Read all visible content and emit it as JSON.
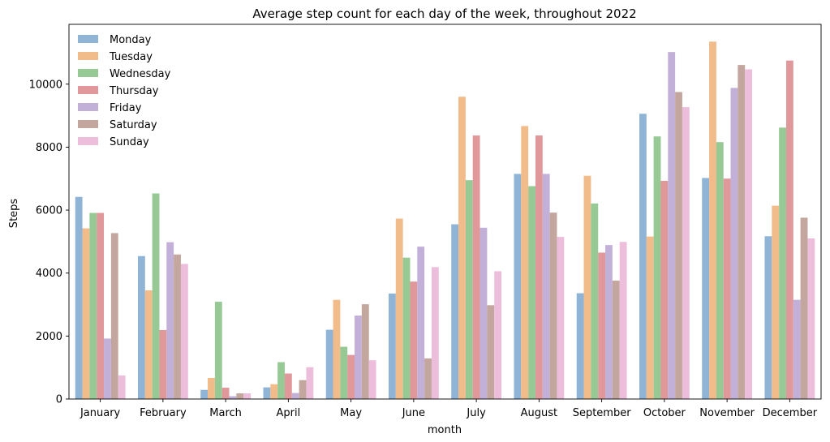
{
  "chart_data": {
    "type": "bar",
    "title": "Average step count for each day of the week, throughout 2022",
    "xlabel": "month",
    "ylabel": "Steps",
    "ylim": [
      0,
      11900
    ],
    "yticks": [
      0,
      2000,
      4000,
      6000,
      8000,
      10000
    ],
    "grid": false,
    "legend_position": "top-left",
    "categories": [
      "January",
      "February",
      "March",
      "April",
      "May",
      "June",
      "July",
      "August",
      "September",
      "October",
      "November",
      "December"
    ],
    "series": [
      {
        "name": "Monday",
        "color": "#8fb4d6",
        "values": [
          6420,
          4540,
          290,
          370,
          2200,
          3350,
          5550,
          7150,
          3360,
          9060,
          7020,
          5170
        ]
      },
      {
        "name": "Tuesday",
        "color": "#f2bb8a",
        "values": [
          5420,
          3450,
          670,
          470,
          3150,
          5730,
          9600,
          8670,
          7090,
          5160,
          11350,
          6140
        ]
      },
      {
        "name": "Wednesday",
        "color": "#97c995",
        "values": [
          5910,
          6530,
          3090,
          1170,
          1660,
          4490,
          6950,
          6760,
          6210,
          8340,
          8160,
          8620
        ]
      },
      {
        "name": "Thursday",
        "color": "#e1989a",
        "values": [
          5910,
          2190,
          360,
          810,
          1400,
          3730,
          8370,
          8370,
          4650,
          6930,
          7000,
          10750
        ]
      },
      {
        "name": "Friday",
        "color": "#c2b0d8",
        "values": [
          1920,
          4980,
          90,
          190,
          2650,
          4840,
          5440,
          7150,
          4890,
          11020,
          9880,
          3150
        ]
      },
      {
        "name": "Saturday",
        "color": "#c3a79e",
        "values": [
          5270,
          4590,
          180,
          600,
          3010,
          1290,
          2980,
          5920,
          3760,
          9750,
          10610,
          5760
        ]
      },
      {
        "name": "Sunday",
        "color": "#ecbedc",
        "values": [
          750,
          4290,
          180,
          1010,
          1230,
          4190,
          4060,
          5150,
          4990,
          9270,
          10470,
          5100
        ]
      }
    ]
  }
}
